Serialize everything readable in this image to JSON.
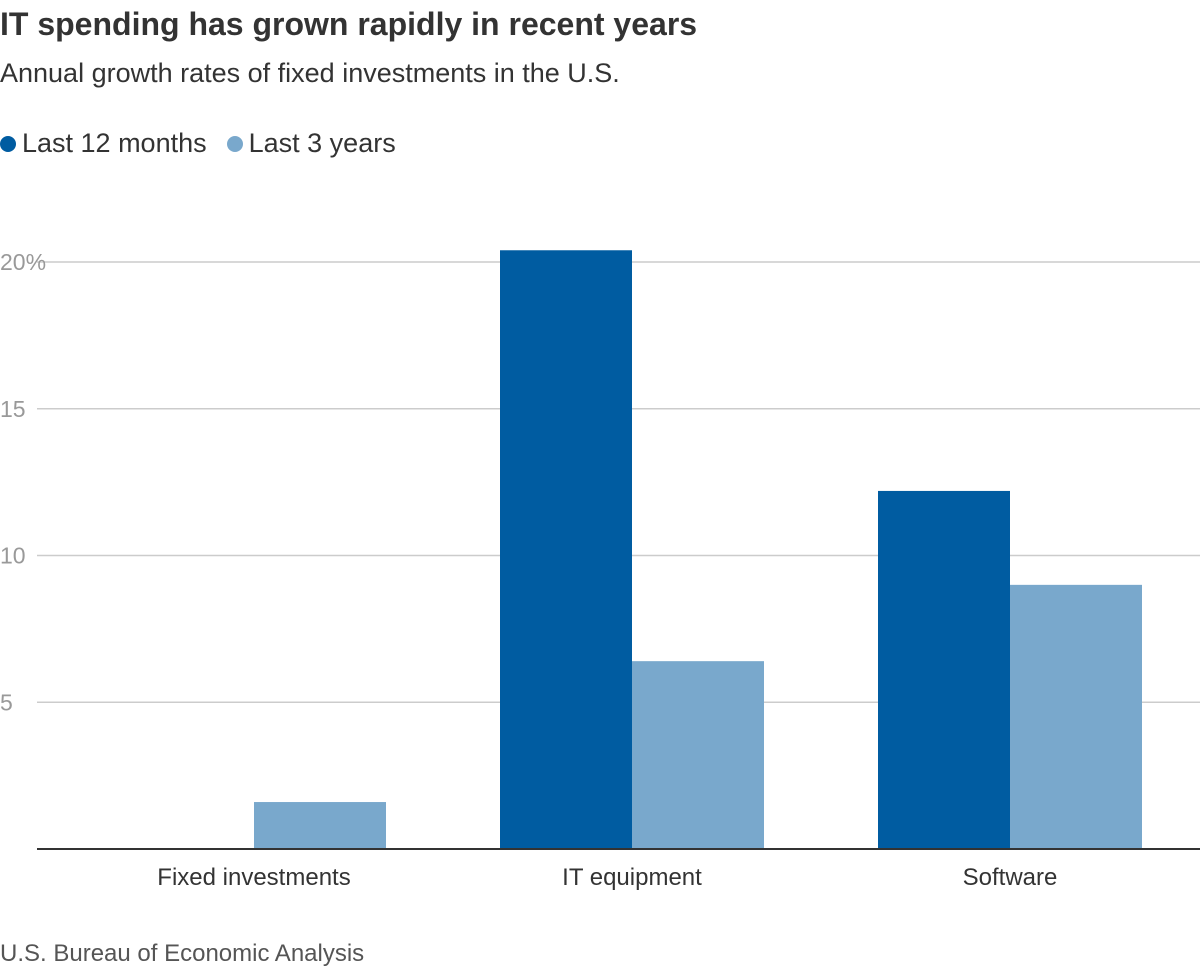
{
  "header": {
    "title": "IT spending has grown rapidly in recent years",
    "subtitle": "Annual growth rates of fixed investments in the U.S."
  },
  "legend": [
    {
      "label": "Last 12 months",
      "color": "#005ca1"
    },
    {
      "label": "Last 3 years",
      "color": "#79a8cc"
    }
  ],
  "source": "U.S. Bureau of Economic Analysis",
  "chart_data": {
    "type": "bar",
    "title": "IT spending has grown rapidly in recent years",
    "subtitle": "Annual growth rates of fixed investments in the U.S.",
    "categories": [
      "Fixed investments",
      "IT equipment",
      "Software"
    ],
    "series": [
      {
        "name": "Last 12 months",
        "color": "#005ca1",
        "values": [
          0,
          20.4,
          12.2
        ]
      },
      {
        "name": "Last 3 years",
        "color": "#79a8cc",
        "values": [
          1.6,
          6.4,
          9.0
        ]
      }
    ],
    "ylim": [
      0,
      20
    ],
    "yticks": [
      5,
      10,
      15,
      20
    ],
    "ytick_labels": [
      "5",
      "10",
      "15",
      "20%"
    ],
    "xlabel": "",
    "ylabel": "",
    "grid": true,
    "legend_position": "top-left"
  }
}
